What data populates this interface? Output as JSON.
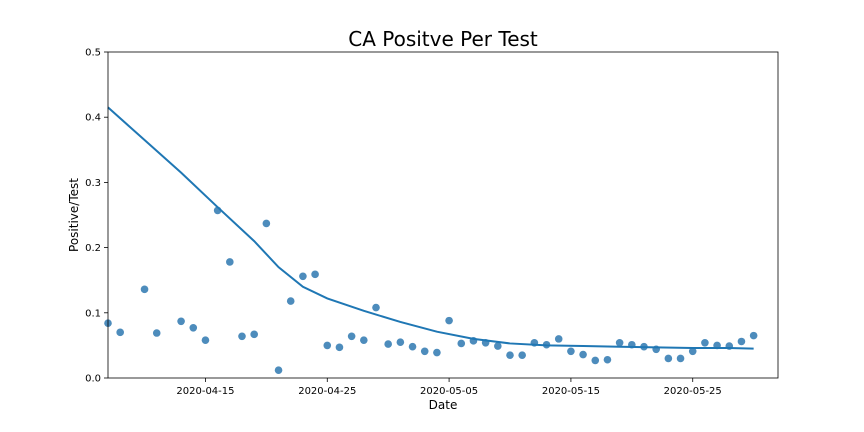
{
  "chart_data": {
    "type": "scatter",
    "title": "CA Positve Per Test",
    "xlabel": "Date",
    "ylabel": "Positive/Test",
    "xlim": [
      "2020-04-07",
      "2020-06-01"
    ],
    "ylim": [
      0,
      0.5
    ],
    "x_ticks": [
      "2020-04-15",
      "2020-04-25",
      "2020-05-05",
      "2020-05-15",
      "2020-05-25"
    ],
    "y_ticks": [
      "0.0",
      "0.1",
      "0.2",
      "0.3",
      "0.4",
      "0.5"
    ],
    "grid": false,
    "legend": "none",
    "colors": {
      "points": "#3a7fb5",
      "line": "#1f77b4"
    },
    "series": [
      {
        "kind": "points",
        "points": [
          [
            "2020-04-07",
            0.084
          ],
          [
            "2020-04-08",
            0.07
          ],
          [
            "2020-04-10",
            0.136
          ],
          [
            "2020-04-11",
            0.069
          ],
          [
            "2020-04-13",
            0.087
          ],
          [
            "2020-04-14",
            0.077
          ],
          [
            "2020-04-15",
            0.058
          ],
          [
            "2020-04-16",
            0.257
          ],
          [
            "2020-04-17",
            0.178
          ],
          [
            "2020-04-18",
            0.064
          ],
          [
            "2020-04-19",
            0.067
          ],
          [
            "2020-04-20",
            0.237
          ],
          [
            "2020-04-21",
            0.012
          ],
          [
            "2020-04-22",
            0.118
          ],
          [
            "2020-04-23",
            0.156
          ],
          [
            "2020-04-24",
            0.159
          ],
          [
            "2020-04-25",
            0.05
          ],
          [
            "2020-04-26",
            0.047
          ],
          [
            "2020-04-27",
            0.064
          ],
          [
            "2020-04-28",
            0.058
          ],
          [
            "2020-04-29",
            0.108
          ],
          [
            "2020-04-30",
            0.052
          ],
          [
            "2020-05-01",
            0.055
          ],
          [
            "2020-05-02",
            0.048
          ],
          [
            "2020-05-03",
            0.041
          ],
          [
            "2020-05-04",
            0.039
          ],
          [
            "2020-05-05",
            0.088
          ],
          [
            "2020-05-06",
            0.053
          ],
          [
            "2020-05-07",
            0.057
          ],
          [
            "2020-05-08",
            0.054
          ],
          [
            "2020-05-09",
            0.049
          ],
          [
            "2020-05-10",
            0.035
          ],
          [
            "2020-05-11",
            0.035
          ],
          [
            "2020-05-12",
            0.054
          ],
          [
            "2020-05-13",
            0.051
          ],
          [
            "2020-05-14",
            0.06
          ],
          [
            "2020-05-15",
            0.041
          ],
          [
            "2020-05-16",
            0.036
          ],
          [
            "2020-05-17",
            0.027
          ],
          [
            "2020-05-18",
            0.028
          ],
          [
            "2020-05-19",
            0.054
          ],
          [
            "2020-05-20",
            0.051
          ],
          [
            "2020-05-21",
            0.048
          ],
          [
            "2020-05-22",
            0.044
          ],
          [
            "2020-05-23",
            0.03
          ],
          [
            "2020-05-24",
            0.03
          ],
          [
            "2020-05-25",
            0.041
          ],
          [
            "2020-05-26",
            0.054
          ],
          [
            "2020-05-27",
            0.05
          ],
          [
            "2020-05-28",
            0.049
          ],
          [
            "2020-05-29",
            0.056
          ],
          [
            "2020-05-30",
            0.065
          ]
        ]
      },
      {
        "kind": "line",
        "points": [
          [
            "2020-04-07",
            0.415
          ],
          [
            "2020-04-10",
            0.365
          ],
          [
            "2020-04-13",
            0.315
          ],
          [
            "2020-04-16",
            0.262
          ],
          [
            "2020-04-19",
            0.21
          ],
          [
            "2020-04-21",
            0.17
          ],
          [
            "2020-04-23",
            0.14
          ],
          [
            "2020-04-25",
            0.122
          ],
          [
            "2020-04-28",
            0.103
          ],
          [
            "2020-05-01",
            0.086
          ],
          [
            "2020-05-04",
            0.071
          ],
          [
            "2020-05-07",
            0.06
          ],
          [
            "2020-05-10",
            0.053
          ],
          [
            "2020-05-13",
            0.05
          ],
          [
            "2020-05-16",
            0.049
          ],
          [
            "2020-05-19",
            0.048
          ],
          [
            "2020-05-22",
            0.047
          ],
          [
            "2020-05-25",
            0.046
          ],
          [
            "2020-05-28",
            0.046
          ],
          [
            "2020-05-30",
            0.045
          ]
        ]
      }
    ]
  }
}
